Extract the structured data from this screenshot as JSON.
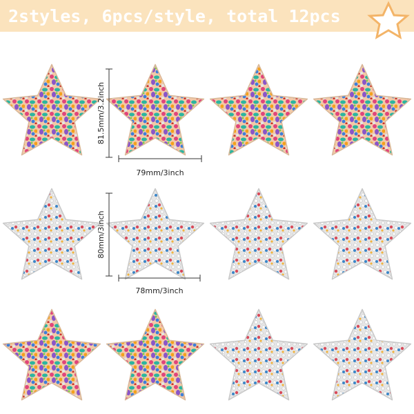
{
  "header": {
    "title": "2styles, 6pcs/style, total 12pcs"
  },
  "dimensions": [
    {
      "height": "81.5mm/3.2inch",
      "width": "79mm/3inch"
    },
    {
      "height": "80mm/3inch",
      "width": "78mm/3inch"
    }
  ]
}
